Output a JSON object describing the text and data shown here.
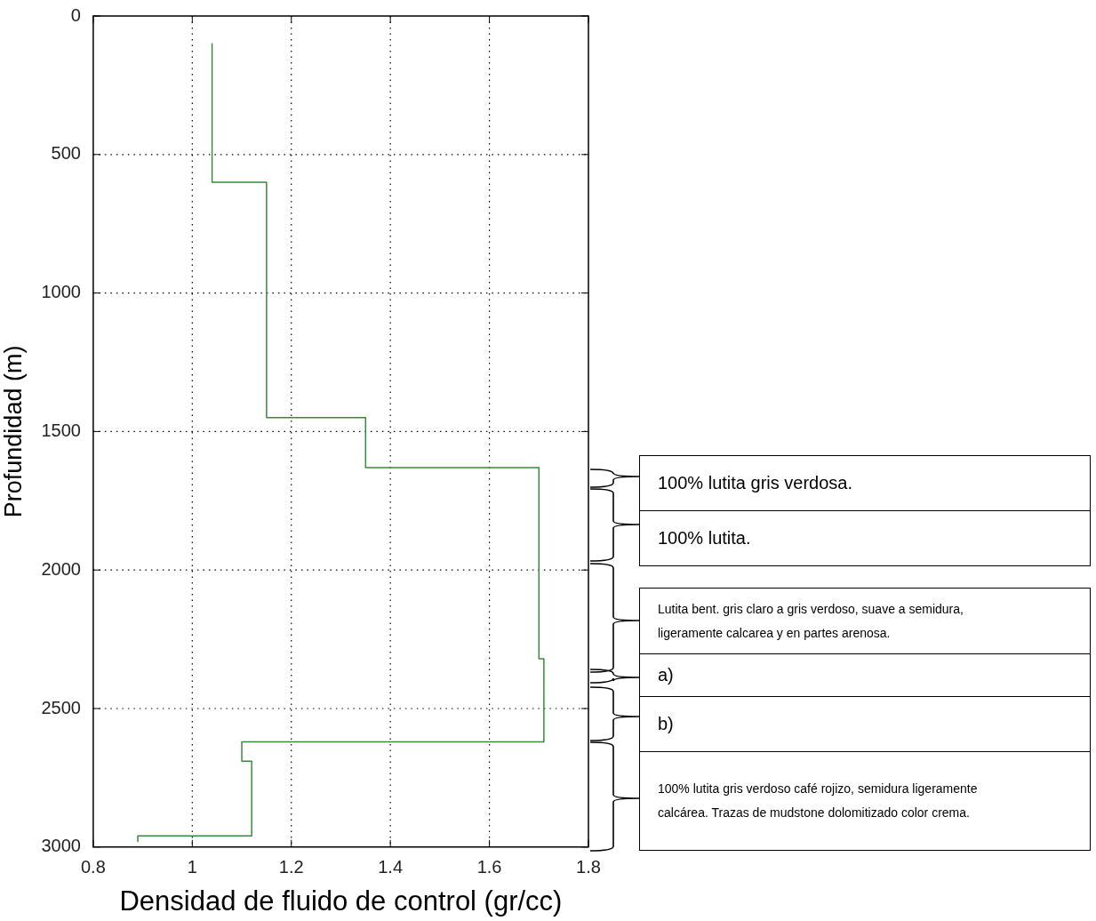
{
  "chart_data": {
    "type": "line",
    "xlabel": "Densidad de fluido de control (gr/cc)",
    "ylabel": "Profundidad (m)",
    "x": [
      1.04,
      1.04,
      1.15,
      1.15,
      1.35,
      1.35,
      1.7,
      1.7,
      1.71,
      1.71,
      1.1,
      1.1,
      1.12,
      1.12,
      0.89,
      0.89
    ],
    "series": [
      {
        "color": "#3a8a3a",
        "values": [
          100,
          600,
          600,
          1450,
          1450,
          1630,
          1630,
          2320,
          2320,
          2620,
          2620,
          2690,
          2690,
          2960,
          2960,
          2980
        ]
      }
    ],
    "xlim": [
      0.8,
      1.8
    ],
    "xticks": [
      {
        "value": 0.8,
        "label": "0.8"
      },
      1,
      1.2,
      1.4,
      1.6,
      1.8
    ],
    "ylim": [
      3000,
      0
    ],
    "yticks": [
      0,
      500,
      1000,
      1500,
      2000,
      2500,
      3000
    ],
    "grid": true,
    "legend": false,
    "marker": "none",
    "line_style": "solid",
    "annotations": [
      "100% lutita gris verdosa.",
      "100% lutita.",
      "Lutita bent. gris claro a gris verdoso, suave a semidura, ligeramente calcarea y en partes arenosa.",
      "a)",
      "b)",
      "100% lutita gris verdoso café rojizo, semidura ligeramente calcárea. Trazas de mudstone dolomitizado color crema."
    ]
  }
}
